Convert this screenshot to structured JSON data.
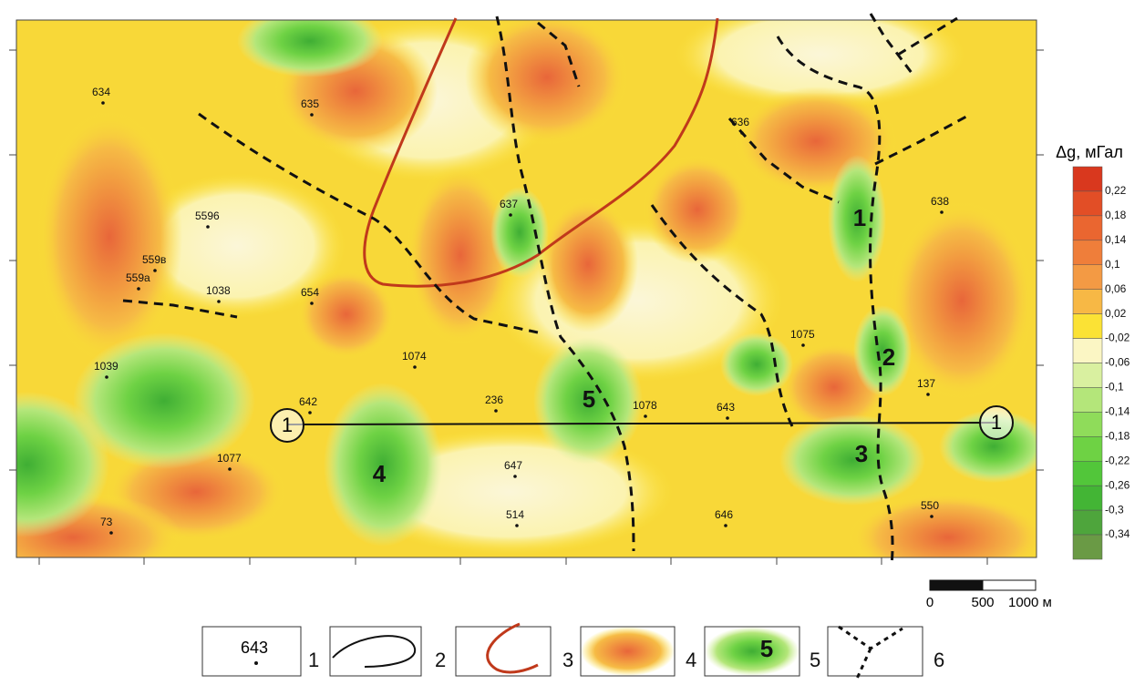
{
  "colorbar": {
    "title": "Δg, мГал",
    "labels": [
      "0,22",
      "0,18",
      "0,14",
      "0,1",
      "0,06",
      "0,02",
      "-0,02",
      "-0,06",
      "-0,1",
      "-0,14",
      "-0,18",
      "-0,22",
      "-0,26",
      "-0,3",
      "-0,34"
    ],
    "colors": [
      "#d9381e",
      "#e24e26",
      "#ea6630",
      "#ef7e3a",
      "#f39a44",
      "#f7b845",
      "#fbe235",
      "#fbf6c4",
      "#d9f0a0",
      "#b4e67a",
      "#8fdc5a",
      "#6ed244",
      "#52c63a",
      "#43b535",
      "#4ea53c",
      "#6a9a45"
    ]
  },
  "wells": [
    {
      "label": "634"
    },
    {
      "label": "635"
    },
    {
      "label": "636"
    },
    {
      "label": "637"
    },
    {
      "label": "638"
    },
    {
      "label": "5596"
    },
    {
      "label": "559в"
    },
    {
      "label": "559а"
    },
    {
      "label": "1038"
    },
    {
      "label": "654"
    },
    {
      "label": "1039"
    },
    {
      "label": "1074"
    },
    {
      "label": "1075"
    },
    {
      "label": "137"
    },
    {
      "label": "642"
    },
    {
      "label": "236"
    },
    {
      "label": "1078"
    },
    {
      "label": "643"
    },
    {
      "label": "1077"
    },
    {
      "label": "647"
    },
    {
      "label": "514"
    },
    {
      "label": "646"
    },
    {
      "label": "73"
    },
    {
      "label": "550"
    }
  ],
  "anomalies": [
    "1",
    "2",
    "3",
    "4",
    "5"
  ],
  "profile": {
    "start": "1",
    "end": "1"
  },
  "scale_bar": {
    "labels": [
      "0",
      "500",
      "1000 м"
    ]
  },
  "legend": {
    "sample_well": "643",
    "sample_anomaly": "5",
    "items": [
      "1",
      "2",
      "3",
      "4",
      "5",
      "6"
    ]
  }
}
